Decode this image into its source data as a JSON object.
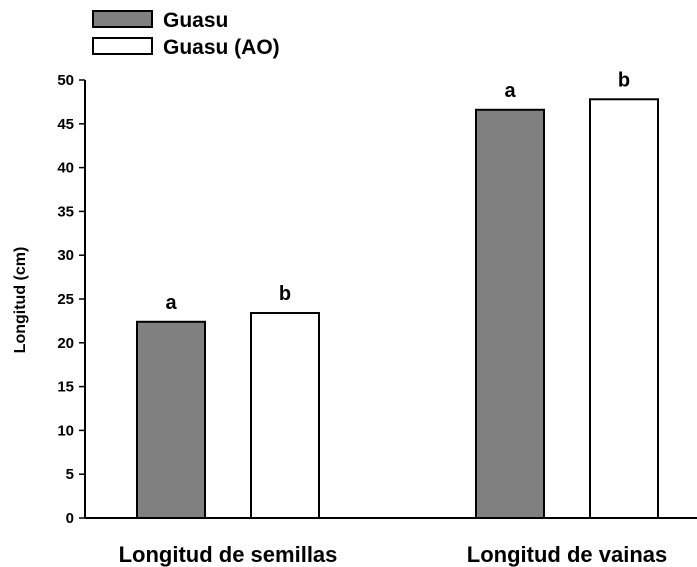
{
  "chart_data": {
    "type": "bar",
    "categories": [
      "Longitud de semillas",
      "Longitud de vainas"
    ],
    "ylabel": "Longitud (cm)",
    "xlabel": "",
    "ylim": [
      0,
      50
    ],
    "yticks": [
      0,
      5,
      10,
      15,
      20,
      25,
      30,
      35,
      40,
      45,
      50
    ],
    "grid": false,
    "legend_position": "top-left",
    "series": [
      {
        "name": "Guasu",
        "color": "#808080",
        "values": [
          22.4,
          46.6
        ],
        "labels": [
          "a",
          "a"
        ]
      },
      {
        "name": "Guasu (AO)",
        "color": "#ffffff",
        "values": [
          23.4,
          47.8
        ],
        "labels": [
          "b",
          "b"
        ]
      }
    ]
  }
}
